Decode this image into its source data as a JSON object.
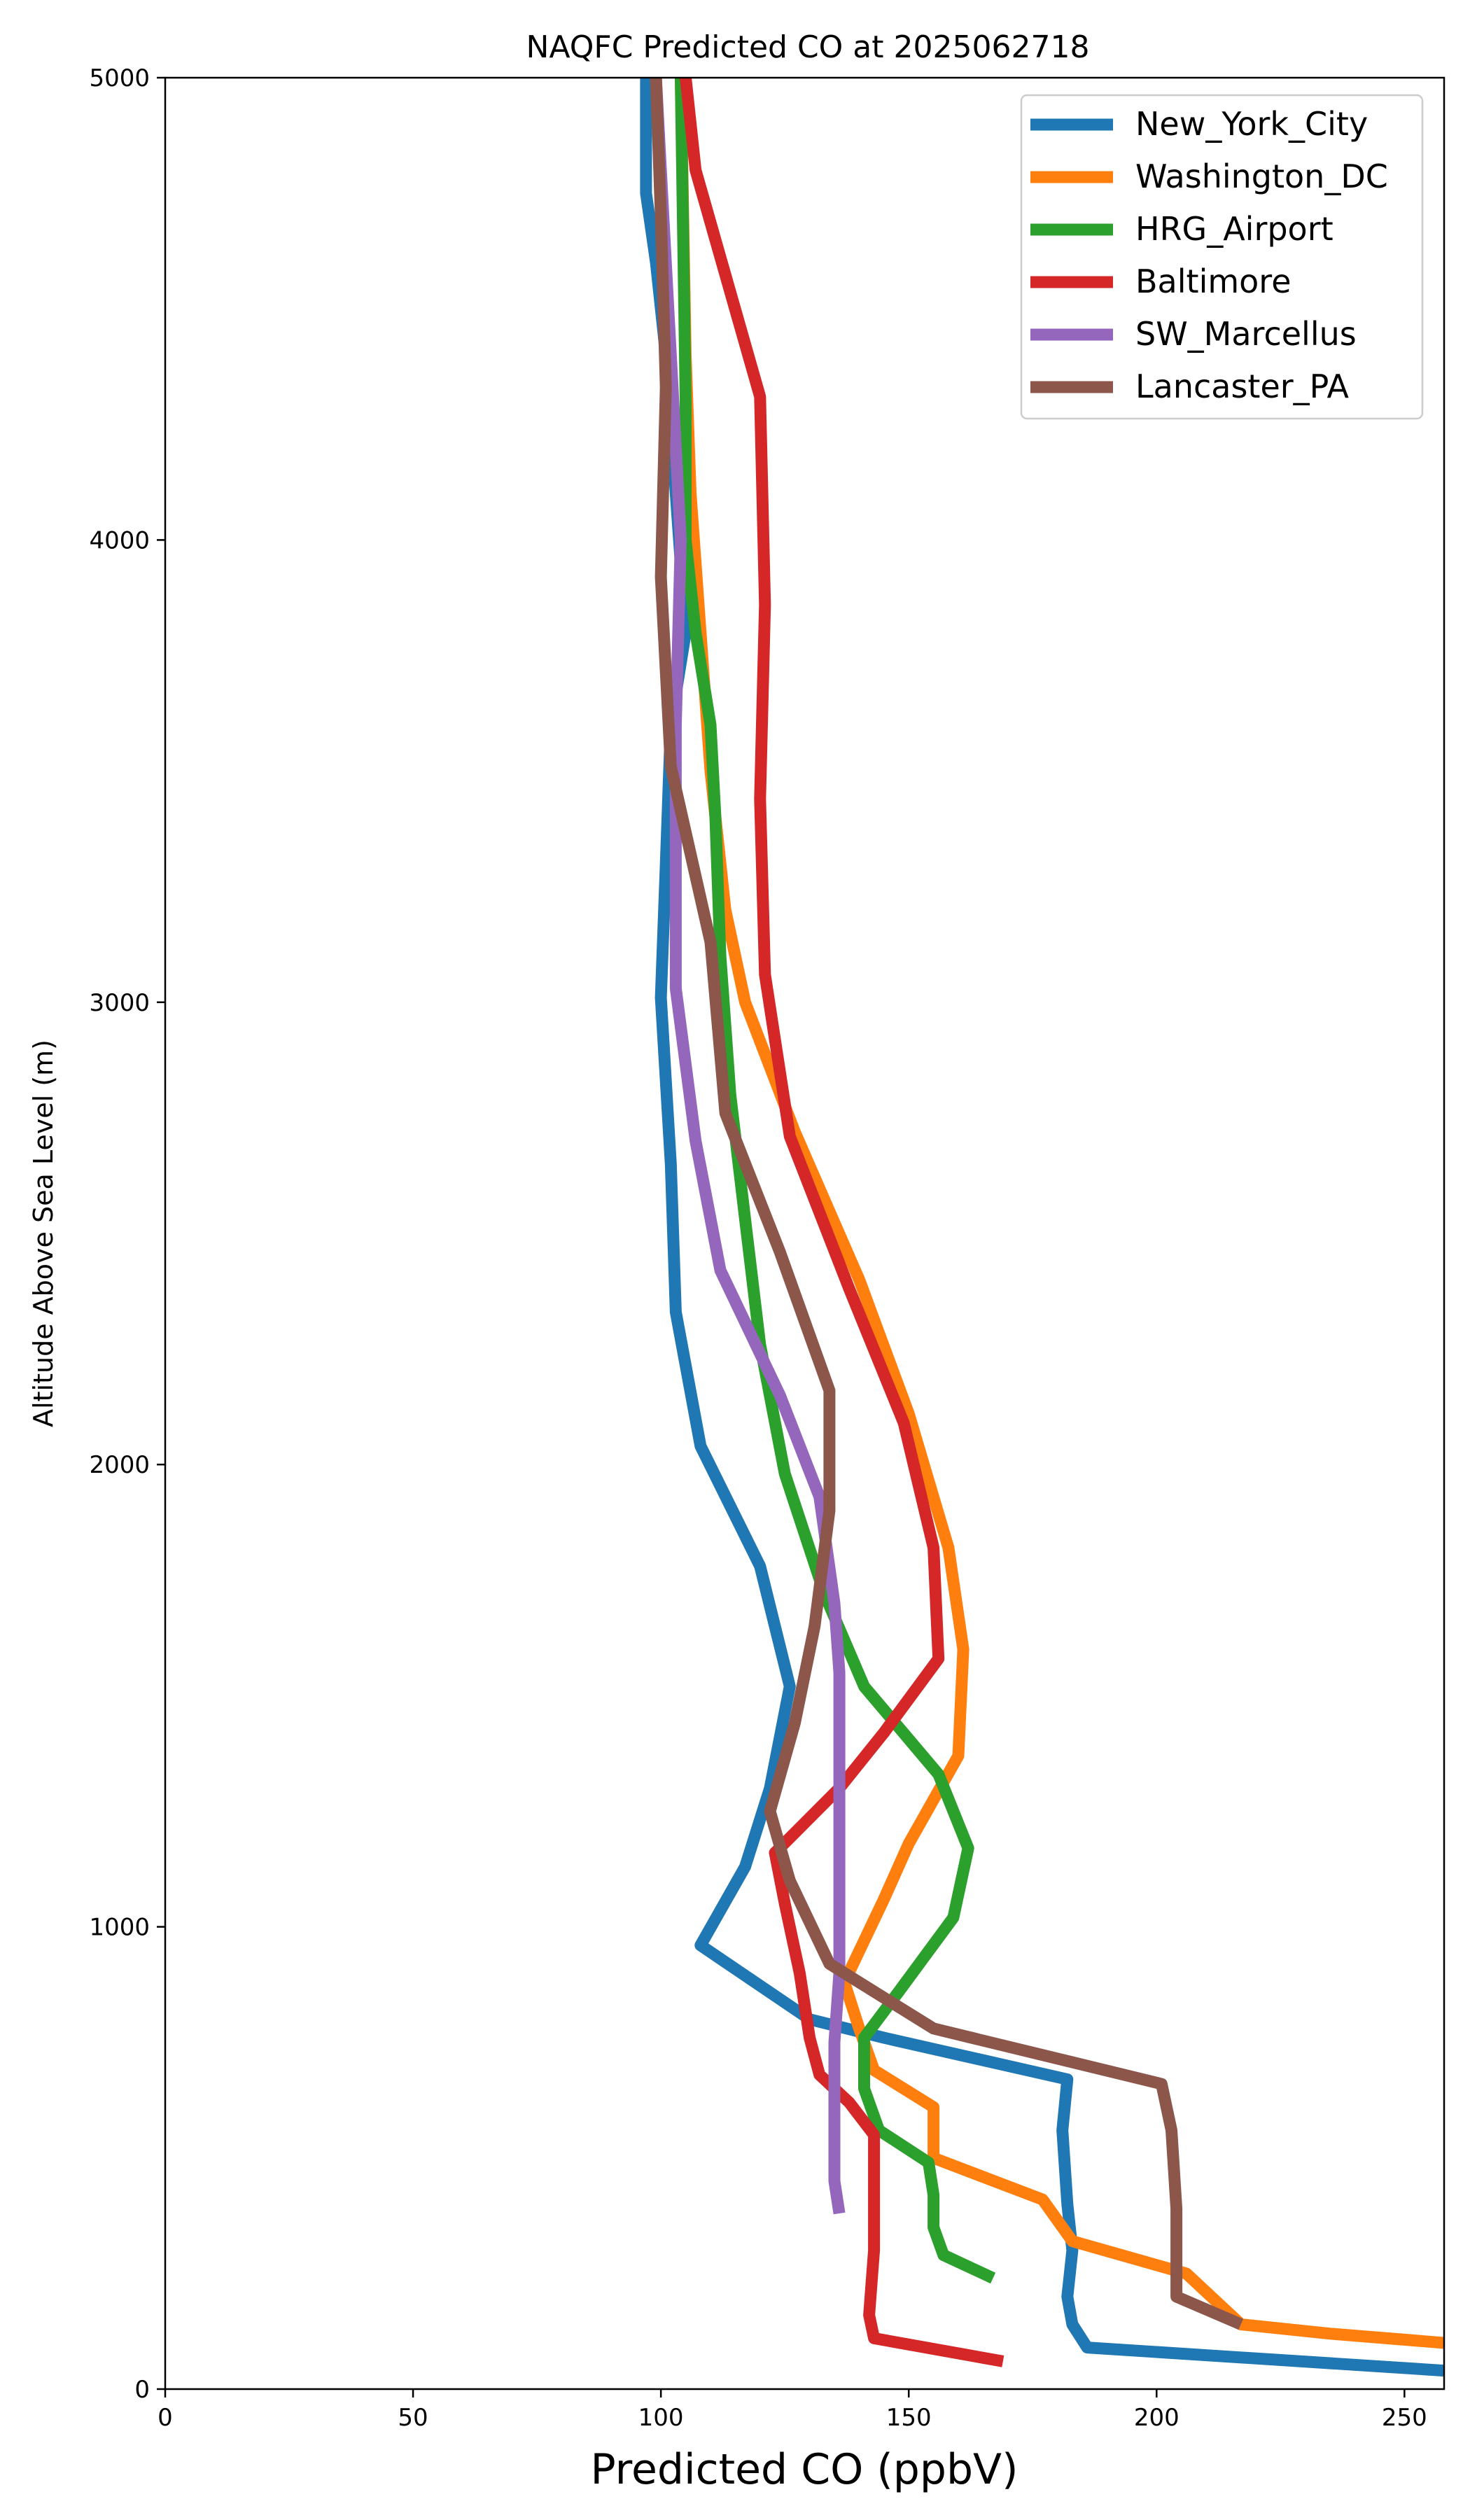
{
  "chart_data": {
    "type": "line",
    "title": "NAQFC Predicted CO at 2025062718",
    "xlabel": "Predicted CO (ppbV)",
    "ylabel": "Altitude Above Sea Level (m)",
    "xlim": [
      0,
      258
    ],
    "ylim": [
      0,
      5000
    ],
    "xticks": [
      0,
      50,
      100,
      150,
      200,
      250
    ],
    "yticks": [
      0,
      1000,
      2000,
      3000,
      4000,
      5000
    ],
    "grid": false,
    "legend_position": "top-right",
    "series": [
      {
        "name": "New_York_City",
        "color": "#1f77b4",
        "points": [
          [
            258,
            40
          ],
          [
            186,
            90
          ],
          [
            183,
            140
          ],
          [
            182,
            200
          ],
          [
            183,
            300
          ],
          [
            182,
            400
          ],
          [
            181,
            560
          ],
          [
            182,
            670
          ],
          [
            145,
            760
          ],
          [
            130,
            800
          ],
          [
            108,
            960
          ],
          [
            117,
            1130
          ],
          [
            122,
            1300
          ],
          [
            126,
            1520
          ],
          [
            120,
            1780
          ],
          [
            108,
            2040
          ],
          [
            103,
            2330
          ],
          [
            102,
            2650
          ],
          [
            100,
            3010
          ],
          [
            101,
            3300
          ],
          [
            102,
            3600
          ],
          [
            105,
            3800
          ],
          [
            103,
            4100
          ],
          [
            101,
            4400
          ],
          [
            99,
            4600
          ],
          [
            97,
            4750
          ],
          [
            97,
            5000
          ]
        ]
      },
      {
        "name": "Washington_DC",
        "color": "#ff7f0e",
        "points": [
          [
            258,
            100
          ],
          [
            235,
            120
          ],
          [
            217,
            140
          ],
          [
            206,
            250
          ],
          [
            183,
            320
          ],
          [
            177,
            410
          ],
          [
            155,
            500
          ],
          [
            155,
            610
          ],
          [
            143,
            690
          ],
          [
            140,
            780
          ],
          [
            137,
            880
          ],
          [
            145,
            1060
          ],
          [
            150,
            1180
          ],
          [
            160,
            1370
          ],
          [
            161,
            1600
          ],
          [
            158,
            1820
          ],
          [
            150,
            2110
          ],
          [
            140,
            2400
          ],
          [
            127,
            2720
          ],
          [
            117,
            3000
          ],
          [
            113,
            3200
          ],
          [
            110,
            3500
          ],
          [
            108,
            3800
          ],
          [
            106,
            4100
          ],
          [
            105,
            4400
          ],
          [
            104,
            5000
          ]
        ]
      },
      {
        "name": "HRG_Airport",
        "color": "#2ca02c",
        "points": [
          [
            167,
            240
          ],
          [
            157,
            290
          ],
          [
            155,
            350
          ],
          [
            155,
            420
          ],
          [
            154,
            490
          ],
          [
            144,
            560
          ],
          [
            141,
            650
          ],
          [
            141,
            760
          ],
          [
            148,
            860
          ],
          [
            159,
            1020
          ],
          [
            162,
            1170
          ],
          [
            156,
            1330
          ],
          [
            141,
            1520
          ],
          [
            133,
            1720
          ],
          [
            125,
            1980
          ],
          [
            120,
            2260
          ],
          [
            117,
            2530
          ],
          [
            114,
            2800
          ],
          [
            112,
            3100
          ],
          [
            111,
            3400
          ],
          [
            110,
            3600
          ],
          [
            107,
            3800
          ],
          [
            105,
            4000
          ],
          [
            105,
            4300
          ],
          [
            104,
            5000
          ]
        ]
      },
      {
        "name": "Baltimore",
        "color": "#d62728",
        "points": [
          [
            169,
            60
          ],
          [
            143,
            110
          ],
          [
            142,
            160
          ],
          [
            143,
            300
          ],
          [
            143,
            420
          ],
          [
            143,
            550
          ],
          [
            138,
            620
          ],
          [
            132,
            680
          ],
          [
            130,
            760
          ],
          [
            128,
            900
          ],
          [
            125,
            1050
          ],
          [
            123,
            1160
          ],
          [
            136,
            1300
          ],
          [
            145,
            1420
          ],
          [
            156,
            1580
          ],
          [
            155,
            1820
          ],
          [
            149,
            2090
          ],
          [
            138,
            2380
          ],
          [
            126,
            2710
          ],
          [
            121,
            3060
          ],
          [
            120,
            3440
          ],
          [
            121,
            3860
          ],
          [
            120,
            4310
          ],
          [
            107,
            4800
          ],
          [
            105,
            5000
          ]
        ]
      },
      {
        "name": "SW_Marcellus",
        "color": "#9467bd",
        "points": [
          [
            136,
            380
          ],
          [
            135,
            450
          ],
          [
            135,
            600
          ],
          [
            135,
            750
          ],
          [
            136,
            900
          ],
          [
            136,
            1050
          ],
          [
            136,
            1200
          ],
          [
            136,
            1350
          ],
          [
            136,
            1550
          ],
          [
            135,
            1700
          ],
          [
            132,
            1930
          ],
          [
            124,
            2150
          ],
          [
            112,
            2420
          ],
          [
            107,
            2700
          ],
          [
            103,
            3030
          ],
          [
            103,
            3300
          ],
          [
            103,
            3600
          ],
          [
            104,
            4000
          ],
          [
            102,
            4400
          ],
          [
            100,
            4800
          ],
          [
            99,
            5000
          ]
        ]
      },
      {
        "name": "Lancaster_PA",
        "color": "#8c564b",
        "points": [
          [
            217,
            140
          ],
          [
            204,
            200
          ],
          [
            204,
            390
          ],
          [
            203,
            560
          ],
          [
            201,
            660
          ],
          [
            155,
            780
          ],
          [
            134,
            920
          ],
          [
            126,
            1100
          ],
          [
            122,
            1250
          ],
          [
            127,
            1440
          ],
          [
            131,
            1650
          ],
          [
            134,
            1900
          ],
          [
            134,
            2160
          ],
          [
            124,
            2460
          ],
          [
            113,
            2760
          ],
          [
            110,
            3130
          ],
          [
            102,
            3510
          ],
          [
            100,
            3920
          ],
          [
            101,
            4330
          ],
          [
            100,
            4700
          ],
          [
            99,
            5000
          ]
        ]
      }
    ]
  }
}
